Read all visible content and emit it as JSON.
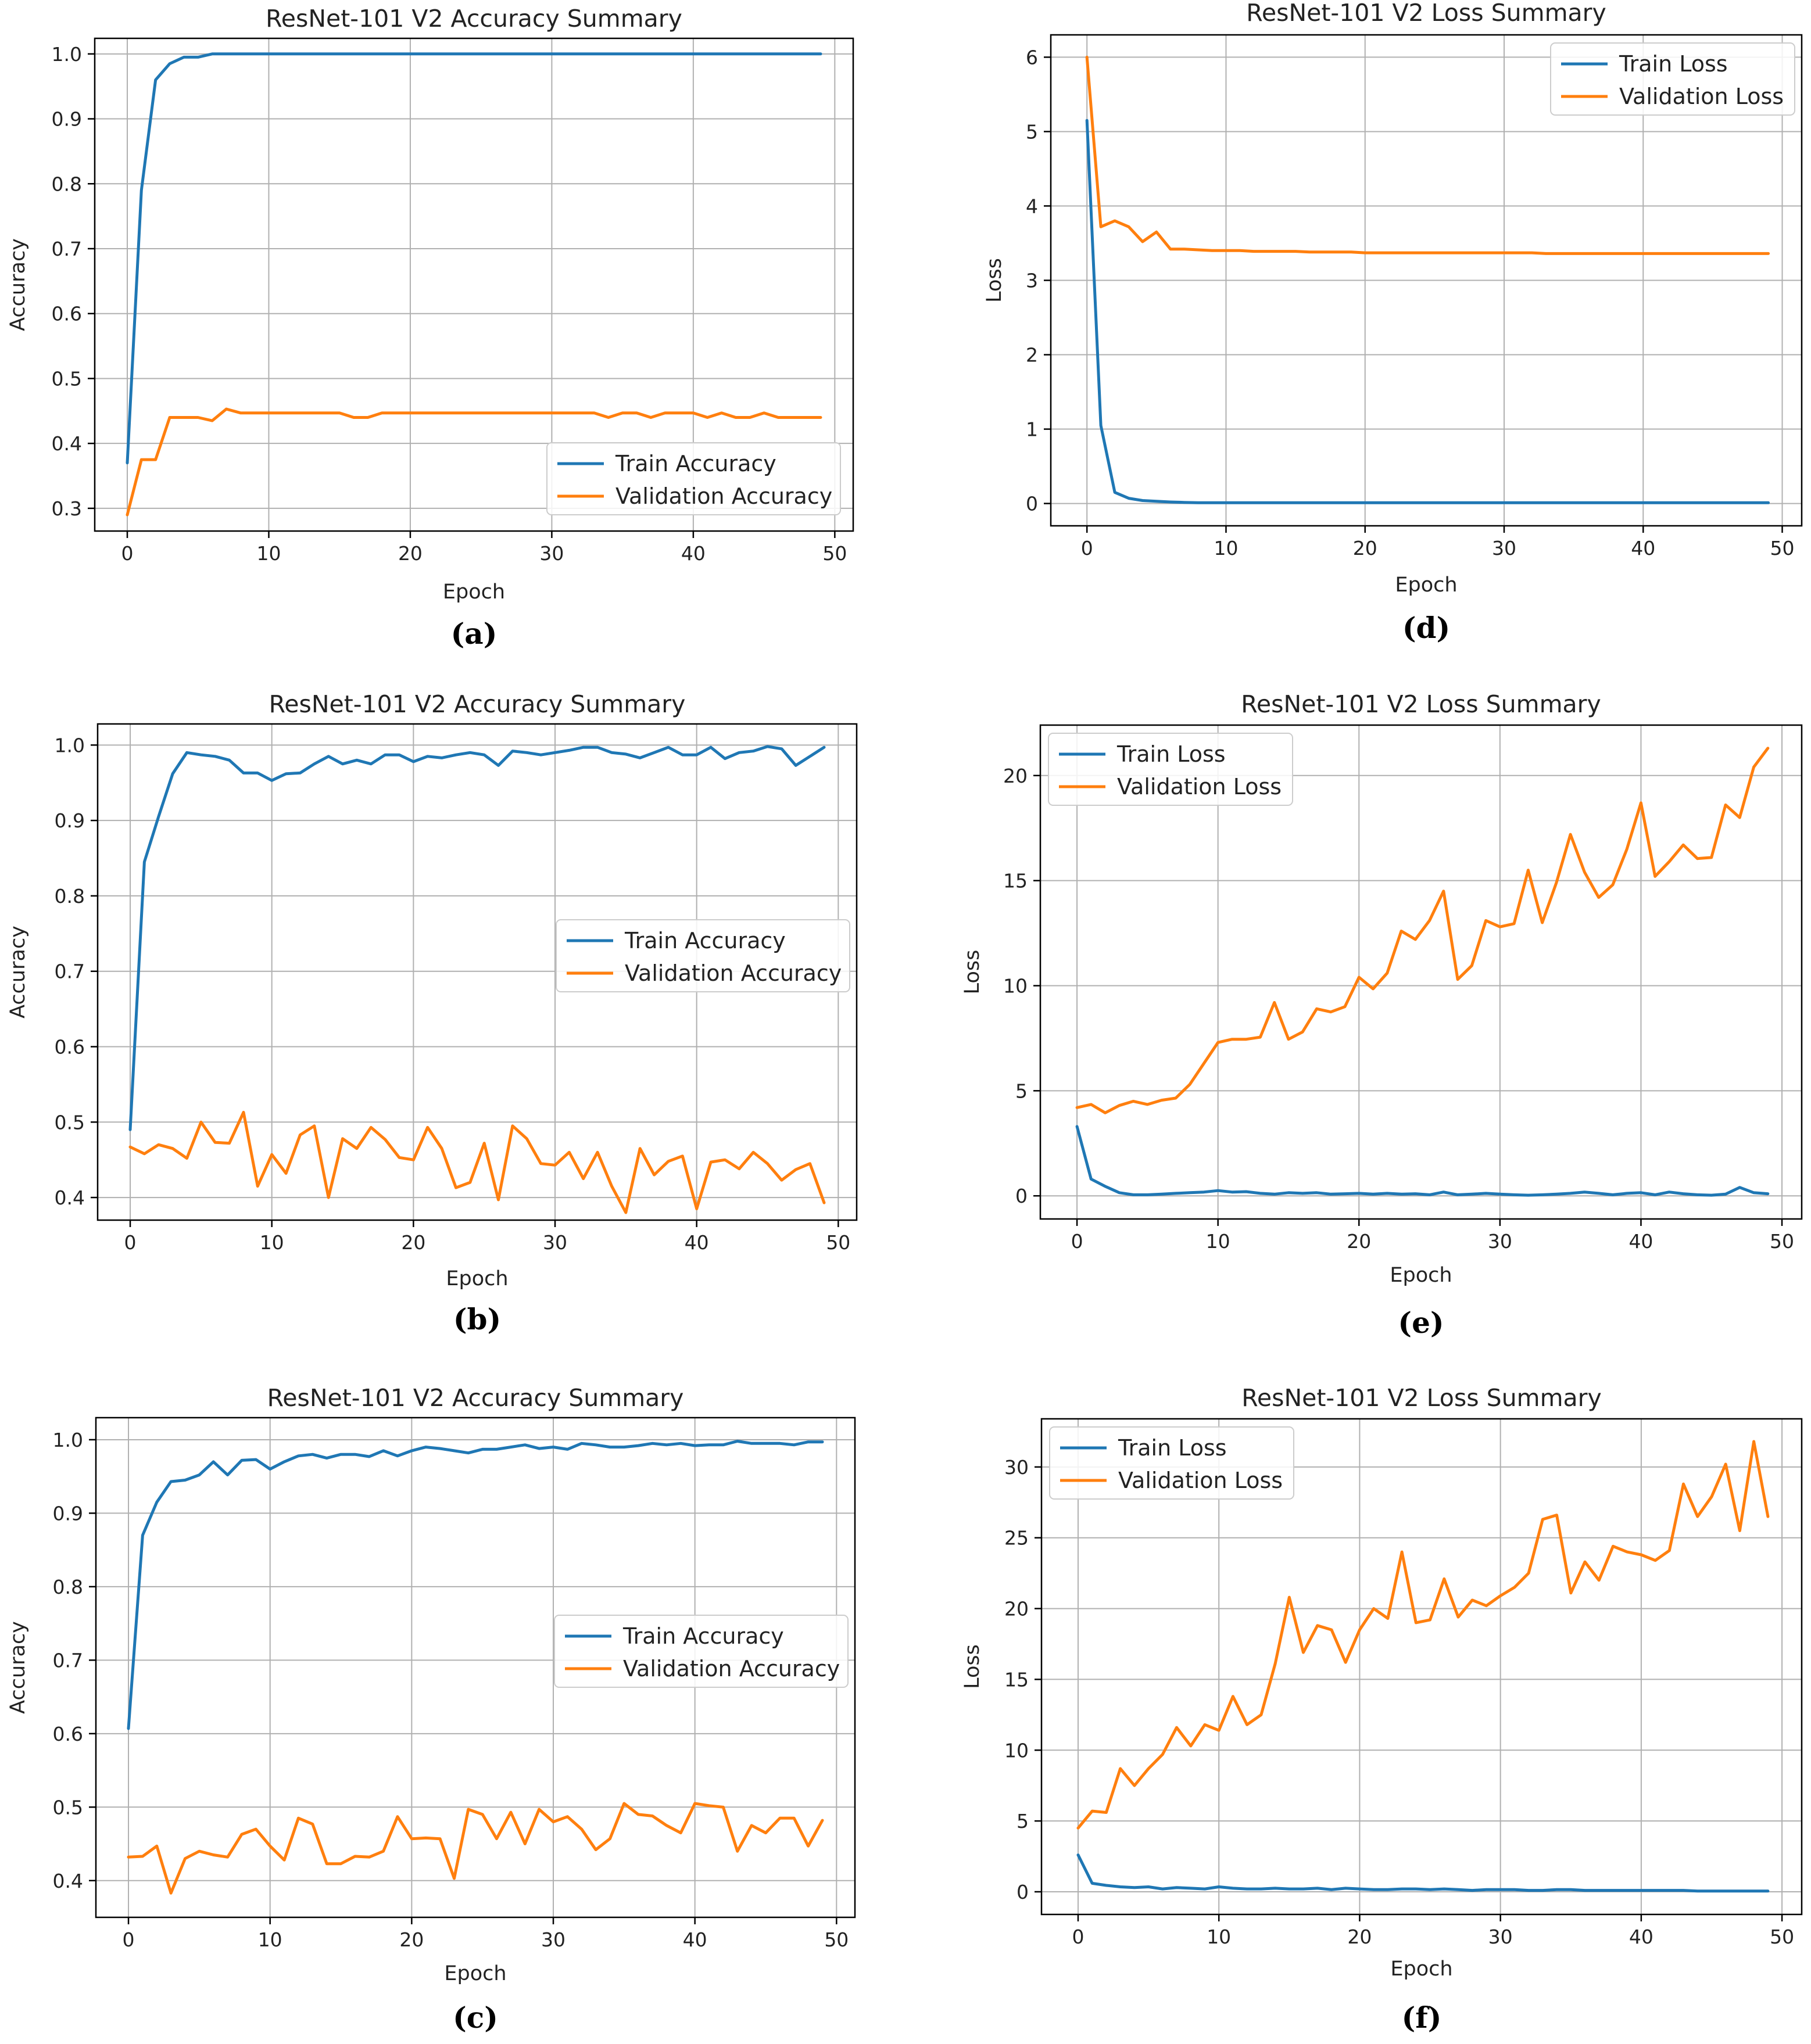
{
  "colors": {
    "train": "#1f77b4",
    "validation": "#ff7f0e"
  },
  "chart_data": [
    {
      "type": "line",
      "caption": "(a)",
      "title": "ResNet-101 V2 Accuracy Summary",
      "xlabel": "Epoch",
      "ylabel": "Accuracy",
      "xlim": [
        -2.3,
        51.3
      ],
      "ylim": [
        0.265,
        1.024
      ],
      "xticks": [
        0,
        10,
        20,
        30,
        40,
        50
      ],
      "yticks": [
        0.3,
        0.4,
        0.5,
        0.6,
        0.7,
        0.8,
        0.9,
        1.0
      ],
      "ytick_labels": [
        "0.3",
        "0.4",
        "0.5",
        "0.6",
        "0.7",
        "0.8",
        "0.9",
        "1.0"
      ],
      "grid": true,
      "legend_position": "lower-right",
      "x": [
        0,
        1,
        2,
        3,
        4,
        5,
        6,
        7,
        8,
        9,
        10,
        11,
        12,
        13,
        14,
        15,
        16,
        17,
        18,
        19,
        20,
        21,
        22,
        23,
        24,
        25,
        26,
        27,
        28,
        29,
        30,
        31,
        32,
        33,
        34,
        35,
        36,
        37,
        38,
        39,
        40,
        41,
        42,
        43,
        44,
        45,
        46,
        47,
        48,
        49
      ],
      "series": [
        {
          "name": "Train Accuracy",
          "values": [
            0.37,
            0.79,
            0.96,
            0.985,
            0.995,
            0.995,
            1,
            1,
            1,
            1,
            1,
            1,
            1,
            1,
            1,
            1,
            1,
            1,
            1,
            1,
            1,
            1,
            1,
            1,
            1,
            1,
            1,
            1,
            1,
            1,
            1,
            1,
            1,
            1,
            1,
            1,
            1,
            1,
            1,
            1,
            1,
            1,
            1,
            1,
            1,
            1,
            1,
            1,
            1,
            1
          ]
        },
        {
          "name": "Validation Accuracy",
          "values": [
            0.29,
            0.375,
            0.375,
            0.44,
            0.44,
            0.44,
            0.435,
            0.453,
            0.447,
            0.447,
            0.447,
            0.447,
            0.447,
            0.447,
            0.447,
            0.447,
            0.44,
            0.44,
            0.447,
            0.447,
            0.447,
            0.447,
            0.447,
            0.447,
            0.447,
            0.447,
            0.447,
            0.447,
            0.447,
            0.447,
            0.447,
            0.447,
            0.447,
            0.447,
            0.44,
            0.447,
            0.447,
            0.44,
            0.447,
            0.447,
            0.447,
            0.44,
            0.447,
            0.44,
            0.44,
            0.447,
            0.44,
            0.44,
            0.44,
            0.44
          ]
        }
      ]
    },
    {
      "type": "line",
      "caption": "(b)",
      "title": "ResNet-101 V2 Accuracy Summary",
      "xlabel": "Epoch",
      "ylabel": "Accuracy",
      "xlim": [
        -2.3,
        51.3
      ],
      "ylim": [
        0.37,
        1.028
      ],
      "xticks": [
        0,
        10,
        20,
        30,
        40,
        50
      ],
      "yticks": [
        0.4,
        0.5,
        0.6,
        0.7,
        0.8,
        0.9,
        1.0
      ],
      "ytick_labels": [
        "0.4",
        "0.5",
        "0.6",
        "0.7",
        "0.8",
        "0.9",
        "1.0"
      ],
      "grid": true,
      "legend_position": "center-right",
      "x": [
        0,
        1,
        2,
        3,
        4,
        5,
        6,
        7,
        8,
        9,
        10,
        11,
        12,
        13,
        14,
        15,
        16,
        17,
        18,
        19,
        20,
        21,
        22,
        23,
        24,
        25,
        26,
        27,
        28,
        29,
        30,
        31,
        32,
        33,
        34,
        35,
        36,
        37,
        38,
        39,
        40,
        41,
        42,
        43,
        44,
        45,
        46,
        47,
        48,
        49
      ],
      "series": [
        {
          "name": "Train Accuracy",
          "values": [
            0.49,
            0.845,
            0.905,
            0.962,
            0.99,
            0.987,
            0.985,
            0.98,
            0.963,
            0.963,
            0.953,
            0.962,
            0.963,
            0.975,
            0.985,
            0.975,
            0.98,
            0.975,
            0.987,
            0.987,
            0.978,
            0.985,
            0.983,
            0.987,
            0.99,
            0.987,
            0.973,
            0.992,
            0.99,
            0.987,
            0.99,
            0.993,
            0.997,
            0.997,
            0.99,
            0.988,
            0.983,
            0.99,
            0.997,
            0.987,
            0.987,
            0.997,
            0.982,
            0.99,
            0.992,
            0.998,
            0.995,
            0.973,
            0.985,
            0.997
          ]
        },
        {
          "name": "Validation Accuracy",
          "values": [
            0.467,
            0.458,
            0.47,
            0.465,
            0.452,
            0.5,
            0.473,
            0.472,
            0.513,
            0.415,
            0.457,
            0.432,
            0.483,
            0.495,
            0.4,
            0.478,
            0.465,
            0.493,
            0.477,
            0.453,
            0.45,
            0.493,
            0.465,
            0.413,
            0.42,
            0.472,
            0.397,
            0.495,
            0.478,
            0.445,
            0.443,
            0.46,
            0.425,
            0.46,
            0.415,
            0.38,
            0.465,
            0.43,
            0.448,
            0.455,
            0.385,
            0.447,
            0.45,
            0.438,
            0.46,
            0.445,
            0.423,
            0.437,
            0.445,
            0.393
          ]
        }
      ]
    },
    {
      "type": "line",
      "caption": "(c)",
      "title": "ResNet-101 V2 Accuracy Summary",
      "xlabel": "Epoch",
      "ylabel": "Accuracy",
      "xlim": [
        -2.3,
        51.3
      ],
      "ylim": [
        0.35,
        1.03
      ],
      "xticks": [
        0,
        10,
        20,
        30,
        40,
        50
      ],
      "yticks": [
        0.4,
        0.5,
        0.6,
        0.7,
        0.8,
        0.9,
        1.0
      ],
      "ytick_labels": [
        "0.4",
        "0.5",
        "0.6",
        "0.7",
        "0.8",
        "0.9",
        "1.0"
      ],
      "grid": true,
      "legend_position": "center-right",
      "x": [
        0,
        1,
        2,
        3,
        4,
        5,
        6,
        7,
        8,
        9,
        10,
        11,
        12,
        13,
        14,
        15,
        16,
        17,
        18,
        19,
        20,
        21,
        22,
        23,
        24,
        25,
        26,
        27,
        28,
        29,
        30,
        31,
        32,
        33,
        34,
        35,
        36,
        37,
        38,
        39,
        40,
        41,
        42,
        43,
        44,
        45,
        46,
        47,
        48,
        49
      ],
      "series": [
        {
          "name": "Train Accuracy",
          "values": [
            0.607,
            0.87,
            0.915,
            0.943,
            0.945,
            0.952,
            0.97,
            0.952,
            0.972,
            0.973,
            0.96,
            0.97,
            0.978,
            0.98,
            0.975,
            0.98,
            0.98,
            0.977,
            0.985,
            0.978,
            0.985,
            0.99,
            0.988,
            0.985,
            0.982,
            0.987,
            0.987,
            0.99,
            0.993,
            0.988,
            0.99,
            0.987,
            0.995,
            0.993,
            0.99,
            0.99,
            0.992,
            0.995,
            0.993,
            0.995,
            0.992,
            0.993,
            0.993,
            0.998,
            0.995,
            0.995,
            0.995,
            0.993,
            0.997,
            0.997
          ]
        },
        {
          "name": "Validation Accuracy",
          "values": [
            0.432,
            0.433,
            0.447,
            0.383,
            0.43,
            0.44,
            0.435,
            0.432,
            0.463,
            0.47,
            0.447,
            0.428,
            0.485,
            0.477,
            0.423,
            0.423,
            0.433,
            0.432,
            0.44,
            0.487,
            0.457,
            0.458,
            0.457,
            0.403,
            0.497,
            0.49,
            0.457,
            0.493,
            0.45,
            0.497,
            0.48,
            0.487,
            0.47,
            0.442,
            0.457,
            0.505,
            0.49,
            0.488,
            0.475,
            0.465,
            0.505,
            0.502,
            0.5,
            0.44,
            0.475,
            0.465,
            0.485,
            0.485,
            0.447,
            0.482
          ]
        }
      ]
    },
    {
      "type": "line",
      "caption": "(d)",
      "title": "ResNet-101 V2 Loss Summary",
      "xlabel": "Epoch",
      "ylabel": "Loss",
      "xlim": [
        -2.6,
        51.4
      ],
      "ylim": [
        -0.3,
        6.3
      ],
      "xticks": [
        0,
        10,
        20,
        30,
        40,
        50
      ],
      "yticks": [
        0,
        1,
        2,
        3,
        4,
        5,
        6
      ],
      "ytick_labels": [
        "0",
        "1",
        "2",
        "3",
        "4",
        "5",
        "6"
      ],
      "grid": true,
      "legend_position": "upper-right",
      "x": [
        0,
        1,
        2,
        3,
        4,
        5,
        6,
        7,
        8,
        9,
        10,
        11,
        12,
        13,
        14,
        15,
        16,
        17,
        18,
        19,
        20,
        21,
        22,
        23,
        24,
        25,
        26,
        27,
        28,
        29,
        30,
        31,
        32,
        33,
        34,
        35,
        36,
        37,
        38,
        39,
        40,
        41,
        42,
        43,
        44,
        45,
        46,
        47,
        48,
        49
      ],
      "series": [
        {
          "name": "Train Loss",
          "values": [
            5.15,
            1.05,
            0.15,
            0.07,
            0.04,
            0.03,
            0.02,
            0.015,
            0.01,
            0.01,
            0.01,
            0.01,
            0.01,
            0.01,
            0.01,
            0.01,
            0.01,
            0.01,
            0.01,
            0.01,
            0.01,
            0.01,
            0.01,
            0.01,
            0.01,
            0.01,
            0.01,
            0.01,
            0.01,
            0.01,
            0.01,
            0.01,
            0.01,
            0.01,
            0.01,
            0.01,
            0.01,
            0.01,
            0.01,
            0.01,
            0.01,
            0.01,
            0.01,
            0.01,
            0.01,
            0.01,
            0.01,
            0.01,
            0.01,
            0.01
          ]
        },
        {
          "name": "Validation Loss",
          "values": [
            6.0,
            3.72,
            3.8,
            3.72,
            3.52,
            3.65,
            3.42,
            3.42,
            3.41,
            3.4,
            3.4,
            3.4,
            3.39,
            3.39,
            3.39,
            3.39,
            3.38,
            3.38,
            3.38,
            3.38,
            3.37,
            3.37,
            3.37,
            3.37,
            3.37,
            3.37,
            3.37,
            3.37,
            3.37,
            3.37,
            3.37,
            3.37,
            3.37,
            3.36,
            3.36,
            3.36,
            3.36,
            3.36,
            3.36,
            3.36,
            3.36,
            3.36,
            3.36,
            3.36,
            3.36,
            3.36,
            3.36,
            3.36,
            3.36,
            3.36
          ]
        }
      ]
    },
    {
      "type": "line",
      "caption": "(e)",
      "title": "ResNet-101 V2 Loss Summary",
      "xlabel": "Epoch",
      "ylabel": "Loss",
      "xlim": [
        -2.6,
        51.4
      ],
      "ylim": [
        -1.1,
        22.4
      ],
      "xticks": [
        0,
        10,
        20,
        30,
        40,
        50
      ],
      "yticks": [
        0,
        5,
        10,
        15,
        20
      ],
      "ytick_labels": [
        "0",
        "5",
        "10",
        "15",
        "20"
      ],
      "grid": true,
      "legend_position": "upper-left",
      "x": [
        0,
        1,
        2,
        3,
        4,
        5,
        6,
        7,
        8,
        9,
        10,
        11,
        12,
        13,
        14,
        15,
        16,
        17,
        18,
        19,
        20,
        21,
        22,
        23,
        24,
        25,
        26,
        27,
        28,
        29,
        30,
        31,
        32,
        33,
        34,
        35,
        36,
        37,
        38,
        39,
        40,
        41,
        42,
        43,
        44,
        45,
        46,
        47,
        48,
        49
      ],
      "series": [
        {
          "name": "Train Loss",
          "values": [
            3.3,
            0.8,
            0.45,
            0.15,
            0.05,
            0.05,
            0.08,
            0.12,
            0.15,
            0.18,
            0.25,
            0.18,
            0.2,
            0.12,
            0.08,
            0.15,
            0.12,
            0.15,
            0.08,
            0.1,
            0.12,
            0.08,
            0.12,
            0.08,
            0.1,
            0.05,
            0.18,
            0.05,
            0.08,
            0.12,
            0.08,
            0.05,
            0.03,
            0.05,
            0.08,
            0.12,
            0.18,
            0.12,
            0.05,
            0.12,
            0.15,
            0.05,
            0.18,
            0.1,
            0.05,
            0.03,
            0.08,
            0.4,
            0.15,
            0.1
          ]
        },
        {
          "name": "Validation Loss",
          "values": [
            4.2,
            4.35,
            3.95,
            4.3,
            4.5,
            4.35,
            4.55,
            4.65,
            5.3,
            6.3,
            7.3,
            7.45,
            7.45,
            7.55,
            9.2,
            7.45,
            7.8,
            8.9,
            8.75,
            9.0,
            10.4,
            9.85,
            10.6,
            12.6,
            12.2,
            13.1,
            14.5,
            10.3,
            10.95,
            13.1,
            12.8,
            12.95,
            15.5,
            13.0,
            14.9,
            17.2,
            15.4,
            14.2,
            14.8,
            16.5,
            18.7,
            15.2,
            15.9,
            16.7,
            16.05,
            16.1,
            18.6,
            18.0,
            20.4,
            21.3
          ]
        }
      ]
    },
    {
      "type": "line",
      "caption": "(f)",
      "title": "ResNet-101 V2 Loss Summary",
      "xlabel": "Epoch",
      "ylabel": "Loss",
      "xlim": [
        -2.6,
        51.4
      ],
      "ylim": [
        -1.6,
        33.4
      ],
      "xticks": [
        0,
        10,
        20,
        30,
        40,
        50
      ],
      "yticks": [
        0,
        5,
        10,
        15,
        20,
        25,
        30
      ],
      "ytick_labels": [
        "0",
        "5",
        "10",
        "15",
        "20",
        "25",
        "30"
      ],
      "grid": true,
      "legend_position": "upper-left",
      "x": [
        0,
        1,
        2,
        3,
        4,
        5,
        6,
        7,
        8,
        9,
        10,
        11,
        12,
        13,
        14,
        15,
        16,
        17,
        18,
        19,
        20,
        21,
        22,
        23,
        24,
        25,
        26,
        27,
        28,
        29,
        30,
        31,
        32,
        33,
        34,
        35,
        36,
        37,
        38,
        39,
        40,
        41,
        42,
        43,
        44,
        45,
        46,
        47,
        48,
        49
      ],
      "series": [
        {
          "name": "Train Loss",
          "values": [
            2.6,
            0.6,
            0.45,
            0.35,
            0.3,
            0.35,
            0.2,
            0.3,
            0.25,
            0.2,
            0.35,
            0.25,
            0.2,
            0.2,
            0.25,
            0.2,
            0.2,
            0.25,
            0.15,
            0.25,
            0.2,
            0.15,
            0.15,
            0.2,
            0.2,
            0.15,
            0.2,
            0.15,
            0.1,
            0.15,
            0.15,
            0.15,
            0.1,
            0.1,
            0.15,
            0.15,
            0.1,
            0.1,
            0.1,
            0.1,
            0.1,
            0.1,
            0.1,
            0.1,
            0.05,
            0.05,
            0.05,
            0.05,
            0.05,
            0.05
          ]
        },
        {
          "name": "Validation Loss",
          "values": [
            4.5,
            5.7,
            5.6,
            8.7,
            7.5,
            8.7,
            9.7,
            11.6,
            10.3,
            11.8,
            11.4,
            13.8,
            11.8,
            12.5,
            16.1,
            20.8,
            16.9,
            18.8,
            18.5,
            16.2,
            18.5,
            20.0,
            19.3,
            24.0,
            19.0,
            19.2,
            22.1,
            19.4,
            20.6,
            20.2,
            20.9,
            21.5,
            22.5,
            26.3,
            26.6,
            21.1,
            23.3,
            22.0,
            24.4,
            24.0,
            23.8,
            23.4,
            24.1,
            28.8,
            26.5,
            27.9,
            30.2,
            25.5,
            31.8,
            26.5
          ]
        }
      ]
    }
  ]
}
